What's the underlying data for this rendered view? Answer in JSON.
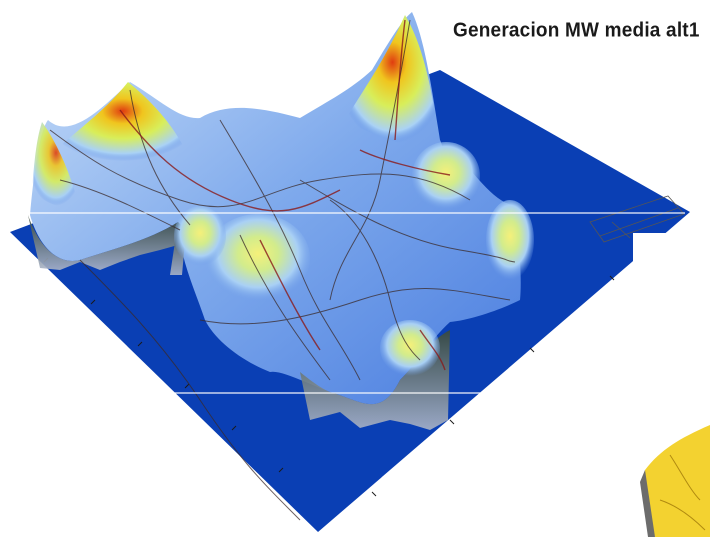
{
  "title": "Generacion MW media alt1",
  "colors": {
    "base_plane": "#0a3fb4",
    "low": "#2f6fe0",
    "mid": "#aad2f5",
    "high_low": "#d8ee5a",
    "high_mid": "#f0c51e",
    "peak": "#e03c10",
    "network_lines": "#3a2a2a",
    "network_red": "#8a1a1a"
  },
  "icons": {
    "corner_fragment": "yellow-terrain-fragment"
  }
}
